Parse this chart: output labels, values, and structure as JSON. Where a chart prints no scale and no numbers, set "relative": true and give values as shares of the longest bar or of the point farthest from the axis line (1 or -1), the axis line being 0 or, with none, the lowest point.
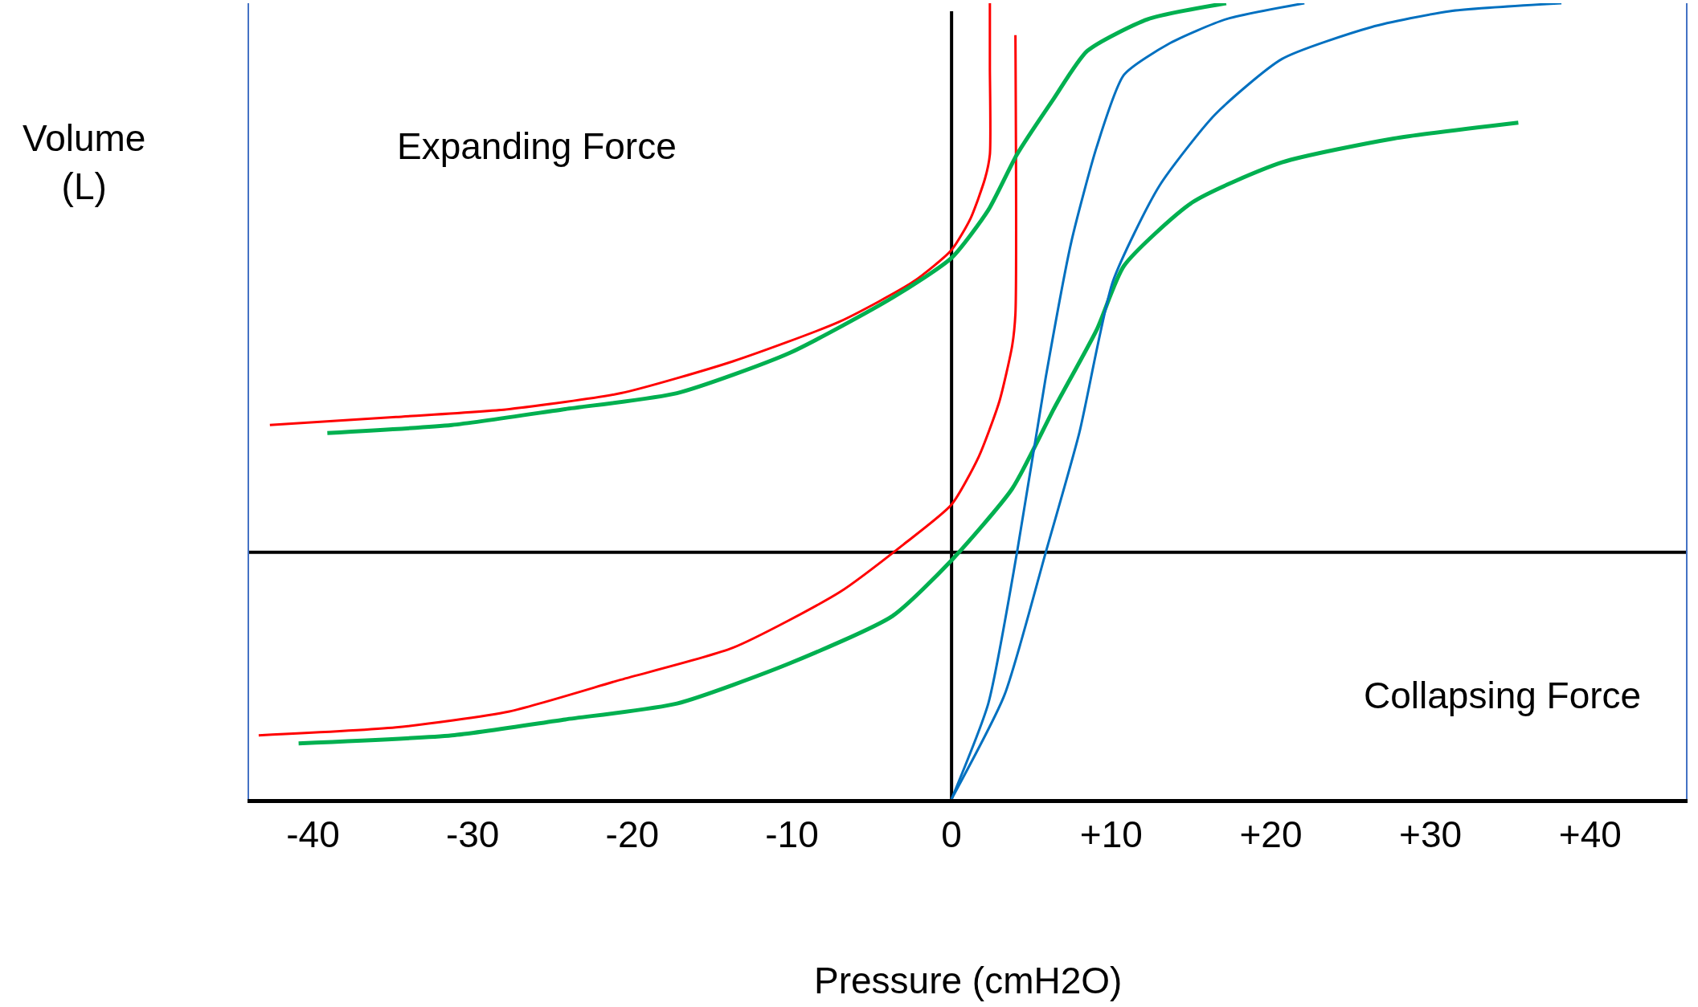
{
  "chart_data": {
    "type": "line",
    "relative": true,
    "xlabel": "Pressure (cmH2O)",
    "ylabel": "Volume\n(L)",
    "annotations": [
      "Expanding Force",
      "Collapsing Force"
    ],
    "xlim": [
      -44,
      46
    ],
    "xticks": [
      -40,
      -30,
      -20,
      -10,
      0,
      {
        "value": 10,
        "label": "+10"
      },
      {
        "value": 20,
        "label": "+20"
      },
      {
        "value": 30,
        "label": "+30"
      },
      {
        "value": 40,
        "label": "+40"
      }
    ],
    "tick_labels": "x",
    "grid": false,
    "marker": "none",
    "line_style": "solid",
    "ref_lines": [
      {
        "axis": "x",
        "value": 0,
        "color": "#000000"
      },
      {
        "axis": "y",
        "value": 0.31,
        "color": "#000000"
      }
    ],
    "series": [
      {
        "color": "#ff0000",
        "x": [
          -42.7,
          -34.8,
          -27.7,
          -20.7,
          -13.7,
          -7.0,
          -2.4,
          0,
          1.2,
          2.1,
          2.4,
          2.4,
          2.4
        ],
        "values": [
          0.47,
          0.48,
          0.49,
          0.51,
          0.55,
          0.6,
          0.65,
          0.69,
          0.73,
          0.78,
          0.81,
          0.92,
          1.0
        ]
      },
      {
        "color": "#ff0000",
        "x": [
          -43.4,
          -34.8,
          -27.7,
          -20.7,
          -13.7,
          -7.0,
          -3.0,
          0,
          1.7,
          3.0,
          3.8,
          4.0,
          4.0
        ],
        "values": [
          0.08,
          0.09,
          0.11,
          0.15,
          0.19,
          0.26,
          0.32,
          0.37,
          0.43,
          0.5,
          0.57,
          0.61,
          0.96
        ]
      },
      {
        "color": "#00b050",
        "x": [
          -39.1,
          -31.3,
          -24.2,
          -17.2,
          -10.2,
          -3.7,
          0,
          2.3,
          4.1,
          6.4,
          8.5,
          12.3,
          17.2
        ],
        "values": [
          0.46,
          0.47,
          0.49,
          0.51,
          0.56,
          0.63,
          0.68,
          0.74,
          0.81,
          0.88,
          0.94,
          0.98,
          1.0
        ]
      },
      {
        "color": "#00b050",
        "x": [
          -40.9,
          -31.3,
          -24.2,
          -17.2,
          -10.2,
          -3.7,
          0,
          3.8,
          6.4,
          9.1,
          10.8,
          15.1,
          20.7,
          27.7,
          35.5
        ],
        "values": [
          0.07,
          0.08,
          0.1,
          0.12,
          0.17,
          0.23,
          0.3,
          0.39,
          0.49,
          0.59,
          0.67,
          0.75,
          0.8,
          0.83,
          0.85
        ]
      },
      {
        "color": "#0070c0",
        "x": [
          0,
          2.3,
          4.1,
          5.9,
          7.5,
          9.1,
          10.8,
          13.7,
          17.2,
          22.1
        ],
        "values": [
          0,
          0.12,
          0.31,
          0.53,
          0.7,
          0.82,
          0.91,
          0.95,
          0.98,
          1.0
        ]
      },
      {
        "color": "#0070c0",
        "x": [
          0,
          3.3,
          5.9,
          8.0,
          10.1,
          13.0,
          16.5,
          20.7,
          26.3,
          31.2,
          38.2
        ],
        "values": [
          0,
          0.13,
          0.31,
          0.46,
          0.65,
          0.77,
          0.86,
          0.93,
          0.97,
          0.99,
          1.0
        ]
      }
    ]
  }
}
